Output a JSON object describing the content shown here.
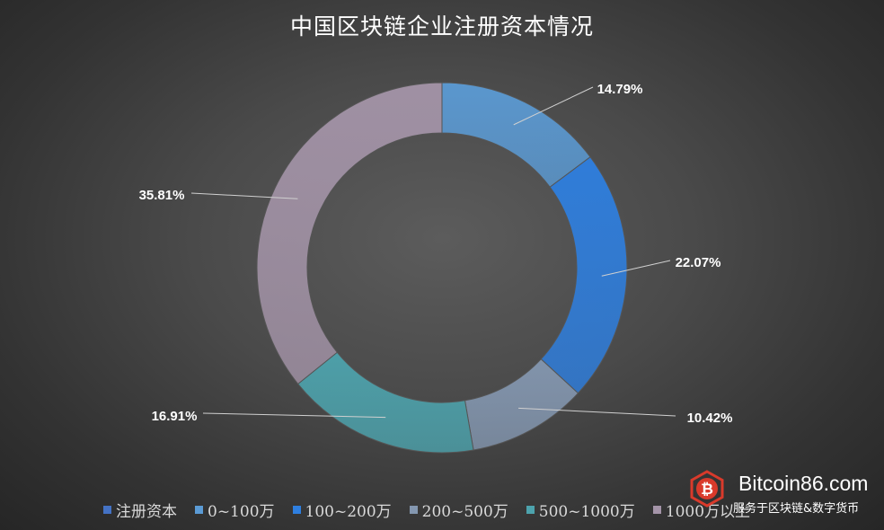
{
  "chart_data": {
    "type": "pie",
    "title": "中国区块链企业注册资本情况",
    "series_name": "注册资本",
    "categories": [
      "0~100万",
      "100~200万",
      "200~500万",
      "500~1000万",
      "1000万以上"
    ],
    "values": [
      14.79,
      22.07,
      10.42,
      16.91,
      35.81
    ],
    "data_labels": [
      "14.79%",
      "22.07%",
      "10.42%",
      "16.91%",
      "35.81%"
    ],
    "colors": [
      "#5b9bd5",
      "#2e7fe0",
      "#8497b0",
      "#4da3ad",
      "#a494a8"
    ],
    "series_color": "#4472c4",
    "legend_position": "bottom",
    "style": "doughnut"
  },
  "watermark": {
    "site": "Bitcoin86.com",
    "slogan": "服务于区块链&数字货币",
    "logo_glyph": "₿",
    "logo_color": "#d93a2b"
  }
}
